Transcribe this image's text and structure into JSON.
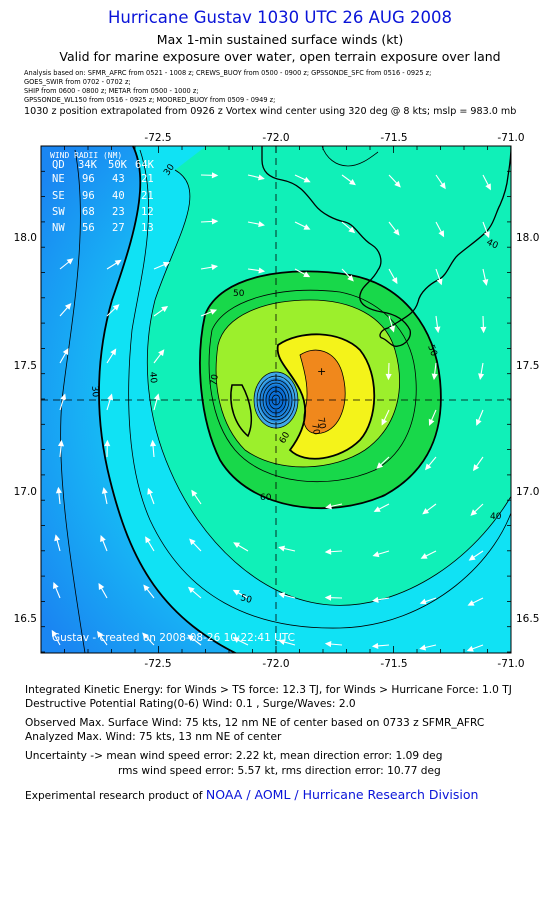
{
  "header": {
    "title": "Hurricane Gustav 1030 UTC 26 AUG 2008",
    "subtitle1": "Max 1-min sustained surface winds (kt)",
    "subtitle2": "Valid for marine exposure over water, open terrain exposure over land",
    "sources": [
      "Analysis based on:  SFMR_AFRC  from 0521 - 1008 z;   CREWS_BUOY from 0500 - 0900 z;   GPSSONDE_SFC  from 0516 - 0925 z;",
      "GOES_SWIR  from 0702 - 0702 z;",
      "SHIP  from 0600 - 0800 z;   METAR  from 0500 - 1000 z;",
      "GPSSONDE_WL150  from 0516 - 0925 z;   MOORED_BUOY  from 0509 - 0949 z;"
    ],
    "position_note": "1030 z position extrapolated from 0926 z Vortex wind center using 320 deg @ 8 kts; mslp = 983.0 mb"
  },
  "map": {
    "lon_ticks": [
      "-72.5",
      "-72.0",
      "-71.5",
      "-71.0"
    ],
    "lat_ticks": [
      "18.0",
      "17.5",
      "17.0",
      "16.5"
    ],
    "contour_labels": [
      "30",
      "30",
      "40",
      "40",
      "40",
      "50",
      "50",
      "50",
      "60",
      "70",
      "70",
      "60",
      "70"
    ],
    "wind_radii": {
      "title": "WIND RADII (NM)",
      "header": [
        "QD",
        "34K",
        "50K",
        "64K"
      ],
      "rows": [
        [
          "NE",
          "96",
          "43",
          "21"
        ],
        [
          "SE",
          "96",
          "40",
          "21"
        ],
        [
          "SW",
          "68",
          "23",
          "12"
        ],
        [
          "NW",
          "56",
          "27",
          "13"
        ]
      ]
    },
    "credit": "Gustav - created on 2008-08-26 10:22:41 UTC",
    "colors": {
      "ocean_far": "#1a9cf7",
      "band_30": "#10e2f4",
      "band_40": "#10f0b8",
      "band_50": "#18d84a",
      "band_60": "#9cef2c",
      "band_64": "#f4f31a",
      "band_70": "#f0881c",
      "eye": "#0b6fd6",
      "land_line": "#000000"
    }
  },
  "footer": {
    "ike": "Integrated Kinetic Energy:  for Winds > TS force: 12.3 TJ,  for Winds > Hurricane Force: 1.0 TJ",
    "dpr": "Destructive Potential Rating(0-6)   Wind: 0.1 , Surge/Waves: 2.0",
    "obs": "Observed Max. Surface Wind: 75 kts, 12 nm NE of center based on 0733 z SFMR_AFRC",
    "ana": "Analyzed Max. Wind: 75 kts, 13 nm NE of center",
    "unc1": "Uncertainty -> mean wind speed error: 2.22 kt,   mean direction error: 1.09 deg",
    "unc2": "rms wind speed error: 5.57 kt,   rms direction error: 10.77 deg",
    "product": "Experimental research product of",
    "org": "NOAA / AOML / Hurricane Research Division"
  }
}
